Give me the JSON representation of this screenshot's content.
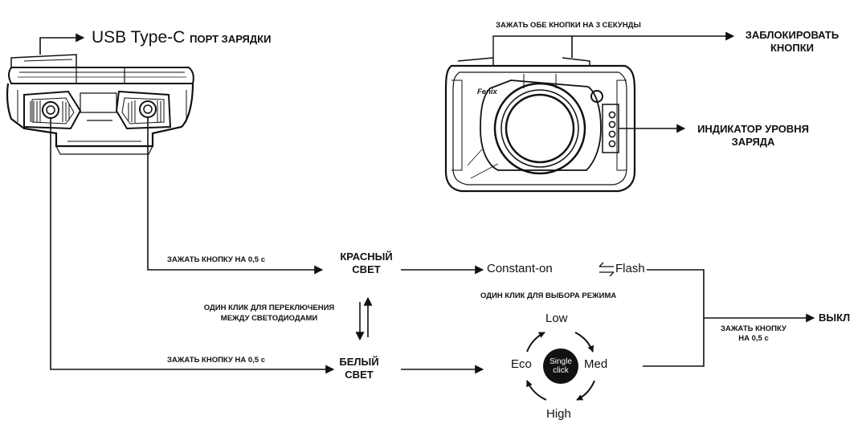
{
  "usb": {
    "main": "USB Type-C",
    "sub": "ПОРТ ЗАРЯДКИ"
  },
  "lock": {
    "instruction": "ЗАЖАТЬ ОБЕ КНОПКИ НА 3 СЕКУНДЫ",
    "result_line1": "ЗАБЛОКИРОВАТЬ",
    "result_line2": "КНОПКИ"
  },
  "battery": {
    "line1": "ИНДИКАТОР УРОВНЯ",
    "line2": "ЗАРЯДА"
  },
  "brand": "Fenix",
  "red": {
    "instruction": "ЗАЖАТЬ КНОПКУ НА 0,5 с",
    "line1": "КРАСНЫЙ",
    "line2": "СВЕТ",
    "modes_left": "Constant-on",
    "modes_right": "Flash"
  },
  "switch": {
    "line1": "ОДИН КЛИК ДЛЯ ПЕРЕКЛЮЧЕНИЯ",
    "line2": "МЕЖДУ СВЕТОДИОДАМИ"
  },
  "white": {
    "instruction": "ЗАЖАТЬ КНОПКУ НА 0,5 с",
    "line1": "БЕЛЫЙ",
    "line2": "СВЕТ"
  },
  "mode_select": "ОДИН КЛИК ДЛЯ ВЫБОРА РЕЖИМА",
  "cycle": {
    "low": "Low",
    "med": "Med",
    "high": "High",
    "eco": "Eco",
    "center_line1": "Single",
    "center_line2": "click"
  },
  "off": {
    "instruction_line1": "ЗАЖАТЬ КНОПКУ",
    "instruction_line2": "НА 0,5 с",
    "label": "ВЫКЛ"
  }
}
